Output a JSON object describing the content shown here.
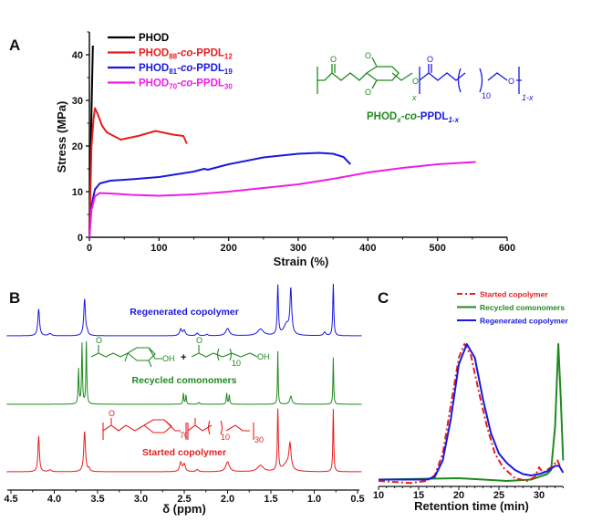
{
  "figure": {
    "panel_labels": [
      "A",
      "B",
      "C"
    ]
  },
  "structures": {
    "main": {
      "atom_O": "O",
      "repeat_x": "x",
      "repeat_10": "10",
      "repeat_1x": "1-x",
      "label_parts": {
        "a": "PHOD",
        "a_sub": "x",
        "b": "-co-",
        "c": "PPDL",
        "c_sub": "1-x"
      },
      "colors": {
        "phod": "#1f8a1f",
        "ppdl": "#1a1adb"
      }
    },
    "monomers": {
      "atom_O": "O",
      "oh": "OH",
      "plus": "+",
      "repeat_10": "10",
      "color": "#1f8a1f"
    },
    "started": {
      "atom_O": "O",
      "repeat_70": "70",
      "repeat_10": "10",
      "repeat_30": "30",
      "color": "#e61e1e"
    }
  },
  "chart_data": [
    {
      "type": "line",
      "panel": "A",
      "xlabel": "Strain (%)",
      "ylabel": "Stress (MPa)",
      "xlim": [
        0,
        600
      ],
      "ylim": [
        0,
        45
      ],
      "xticks": [
        0,
        100,
        200,
        300,
        400,
        500,
        600
      ],
      "yticks": [
        0,
        10,
        20,
        30,
        40
      ],
      "grid": false,
      "legend_placement": "top-left",
      "series": [
        {
          "name": "PHOD",
          "legend": {
            "a": "PHOD",
            "a_sub": "",
            "b": "",
            "c": "",
            "c_sub": ""
          },
          "color": "#000000",
          "points": [
            [
              0,
              0
            ],
            [
              2,
              20
            ],
            [
              5,
              42
            ]
          ]
        },
        {
          "name": "PHOD88-co-PPDL12",
          "legend": {
            "a": "PHOD",
            "a_sub": "88",
            "b": "-co-",
            "c": "PPDL",
            "c_sub": "12"
          },
          "color": "#e61e1e",
          "points": [
            [
              0,
              0
            ],
            [
              3,
              20
            ],
            [
              6,
              26
            ],
            [
              8,
              28.3
            ],
            [
              12,
              27
            ],
            [
              18,
              24.5
            ],
            [
              25,
              23
            ],
            [
              45,
              21.4
            ],
            [
              70,
              22.2
            ],
            [
              95,
              23.3
            ],
            [
              120,
              22.5
            ],
            [
              135,
              22.2
            ],
            [
              140,
              20.5
            ]
          ]
        },
        {
          "name": "PHOD81-co-PPDL19",
          "legend": {
            "a": "PHOD",
            "a_sub": "81",
            "b": "-co-",
            "c": "PPDL",
            "c_sub": "19"
          },
          "color": "#1a1adb",
          "points": [
            [
              0,
              0
            ],
            [
              3,
              7
            ],
            [
              8,
              10.5
            ],
            [
              15,
              11.8
            ],
            [
              30,
              12.4
            ],
            [
              60,
              12.7
            ],
            [
              100,
              13.2
            ],
            [
              150,
              14.4
            ],
            [
              165,
              15
            ],
            [
              170,
              14.8
            ],
            [
              200,
              16
            ],
            [
              250,
              17.5
            ],
            [
              300,
              18.3
            ],
            [
              330,
              18.5
            ],
            [
              350,
              18.3
            ],
            [
              365,
              17.6
            ],
            [
              375,
              16
            ]
          ]
        },
        {
          "name": "PHOD70-co-PPDL30",
          "legend": {
            "a": "PHOD",
            "a_sub": "70",
            "b": "-co-",
            "c": "PPDL",
            "c_sub": "30"
          },
          "color": "#ee1ee6",
          "points": [
            [
              0,
              0
            ],
            [
              3,
              6
            ],
            [
              8,
              9
            ],
            [
              15,
              9.7
            ],
            [
              30,
              9.6
            ],
            [
              60,
              9.3
            ],
            [
              100,
              9.1
            ],
            [
              150,
              9.4
            ],
            [
              200,
              10
            ],
            [
              250,
              10.8
            ],
            [
              300,
              11.6
            ],
            [
              350,
              12.8
            ],
            [
              400,
              14.2
            ],
            [
              450,
              15.2
            ],
            [
              500,
              16
            ],
            [
              555,
              16.5
            ]
          ]
        }
      ]
    },
    {
      "type": "line",
      "panel": "B",
      "xlabel": "δ (ppm)",
      "xlim": [
        4.5,
        0.5
      ],
      "xticks": [
        "4.5",
        "4.0",
        "3.5",
        "3.0",
        "2.5",
        "2.0",
        "1.5",
        "1.0",
        "0.5"
      ],
      "grid": false,
      "series": [
        {
          "name": "Regenerated copolymer",
          "color": "#1a1adb",
          "peaks": [
            [
              4.18,
              0.73,
              0.012
            ],
            [
              4.05,
              0.06,
              0.02
            ],
            [
              3.65,
              1.0,
              0.012
            ],
            [
              3.62,
              0.08,
              0.01
            ],
            [
              2.54,
              0.18,
              0.015
            ],
            [
              2.5,
              0.14,
              0.015
            ],
            [
              2.35,
              0.07,
              0.015
            ],
            [
              2.24,
              0.04,
              0.015
            ],
            [
              2.0,
              0.2,
              0.025
            ],
            [
              1.62,
              0.18,
              0.04
            ],
            [
              1.42,
              1.35,
              0.008
            ],
            [
              1.32,
              0.3,
              0.04
            ],
            [
              1.27,
              1.2,
              0.012
            ],
            [
              0.88,
              0.1,
              0.015
            ],
            [
              0.78,
              1.42,
              0.007
            ]
          ]
        },
        {
          "name": "Recycled comonomers",
          "color": "#1f8a1f",
          "peaks": [
            [
              3.72,
              0.95,
              0.006
            ],
            [
              3.68,
              1.65,
              0.006
            ],
            [
              3.63,
              1.7,
              0.006
            ],
            [
              2.51,
              0.3,
              0.006
            ],
            [
              2.48,
              0.25,
              0.006
            ],
            [
              2.33,
              0.05,
              0.01
            ],
            [
              2.01,
              0.3,
              0.006
            ],
            [
              1.98,
              0.25,
              0.006
            ],
            [
              1.42,
              1.45,
              0.005
            ],
            [
              1.27,
              0.22,
              0.015
            ],
            [
              0.78,
              1.28,
              0.005
            ]
          ]
        },
        {
          "name": "Started copolymer",
          "color": "#e61e1e",
          "peaks": [
            [
              4.18,
              0.98,
              0.01
            ],
            [
              4.05,
              0.05,
              0.02
            ],
            [
              3.65,
              1.1,
              0.012
            ],
            [
              3.6,
              0.08,
              0.01
            ],
            [
              2.54,
              0.25,
              0.015
            ],
            [
              2.5,
              0.2,
              0.015
            ],
            [
              2.35,
              0.06,
              0.015
            ],
            [
              2.0,
              0.27,
              0.025
            ],
            [
              1.62,
              0.17,
              0.04
            ],
            [
              1.42,
              1.68,
              0.007
            ],
            [
              1.32,
              0.2,
              0.05
            ],
            [
              1.28,
              0.68,
              0.015
            ],
            [
              0.78,
              1.72,
              0.006
            ]
          ]
        }
      ]
    },
    {
      "type": "line",
      "panel": "C",
      "xlabel": "Retention time (min)",
      "xlim": [
        10,
        33
      ],
      "xticks": [
        10,
        15,
        20,
        25,
        30
      ],
      "ylim": [
        -0.05,
        1.05
      ],
      "grid": false,
      "legend_placement": "top-right",
      "series": [
        {
          "name": "Started copolymer",
          "color": "#e61e1e",
          "dash": "dash-dot",
          "points": [
            [
              10,
              0
            ],
            [
              14,
              -0.015
            ],
            [
              16,
              0
            ],
            [
              17,
              0.04
            ],
            [
              18,
              0.2
            ],
            [
              19,
              0.55
            ],
            [
              20,
              0.9
            ],
            [
              20.7,
              1.0
            ],
            [
              21.5,
              0.92
            ],
            [
              22.5,
              0.65
            ],
            [
              23.5,
              0.4
            ],
            [
              24.5,
              0.2
            ],
            [
              25.5,
              0.1
            ],
            [
              27,
              0.02
            ],
            [
              28.5,
              0
            ],
            [
              29.5,
              0.03
            ],
            [
              30,
              0.1
            ],
            [
              30.5,
              0.06
            ],
            [
              31.5,
              0.1
            ],
            [
              32.3,
              0.15
            ],
            [
              32.8,
              0.08
            ]
          ]
        },
        {
          "name": "Recycled comonomers",
          "color": "#1f8a1f",
          "dash": "solid",
          "points": [
            [
              10,
              0.01
            ],
            [
              20,
              0.02
            ],
            [
              26,
              0
            ],
            [
              29,
              0.01
            ],
            [
              31,
              0.05
            ],
            [
              31.5,
              0.08
            ],
            [
              32,
              0.4
            ],
            [
              32.4,
              1.0
            ],
            [
              32.7,
              0.6
            ],
            [
              33,
              0.15
            ]
          ]
        },
        {
          "name": "Regenerated copolymer",
          "color": "#1a1adb",
          "dash": "solid",
          "points": [
            [
              10,
              0.01
            ],
            [
              16,
              0.01
            ],
            [
              17,
              0.03
            ],
            [
              18,
              0.15
            ],
            [
              19,
              0.45
            ],
            [
              20,
              0.85
            ],
            [
              21,
              1.0
            ],
            [
              22,
              0.9
            ],
            [
              23,
              0.6
            ],
            [
              24,
              0.35
            ],
            [
              25,
              0.2
            ],
            [
              26,
              0.13
            ],
            [
              27,
              0.08
            ],
            [
              28,
              0.05
            ],
            [
              29,
              0.04
            ],
            [
              30,
              0.05
            ],
            [
              31,
              0.07
            ],
            [
              32,
              0.11
            ],
            [
              32.5,
              0.11
            ],
            [
              33,
              0.06
            ]
          ]
        }
      ]
    }
  ]
}
